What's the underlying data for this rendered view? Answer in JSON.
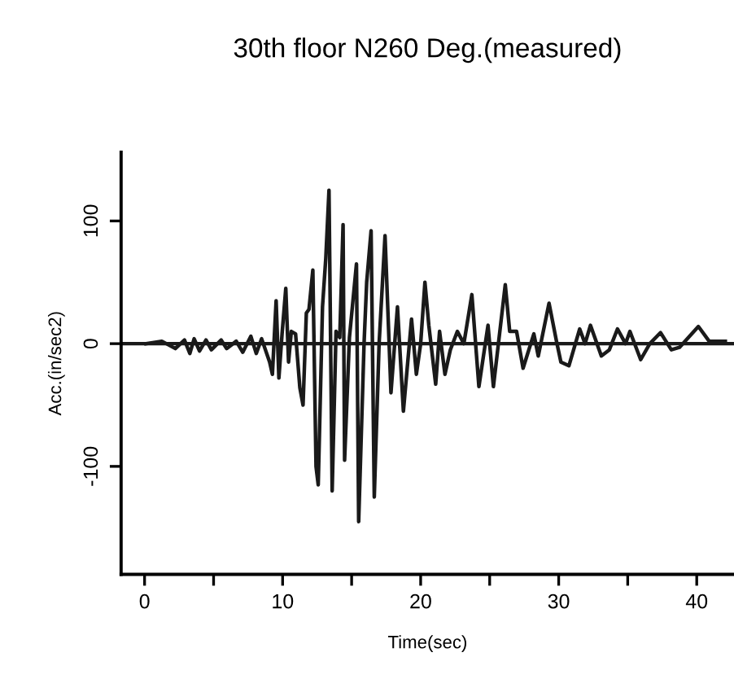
{
  "chart_data": {
    "type": "line",
    "title": "30th floor N260 Deg.(measured)",
    "xlabel": "Time(sec)",
    "ylabel": "Acc.(in/sec2)",
    "x": [
      0.1,
      1.25,
      2.23,
      2.89,
      3.28,
      3.59,
      3.98,
      4.45,
      4.84,
      5.55,
      5.94,
      6.64,
      7.11,
      7.7,
      8.09,
      8.48,
      9.06,
      9.26,
      9.53,
      9.73,
      9.96,
      10.23,
      10.43,
      10.63,
      10.94,
      11.25,
      11.48,
      11.72,
      11.91,
      12.19,
      12.42,
      12.58,
      12.89,
      13.13,
      13.36,
      13.59,
      13.87,
      14.14,
      14.38,
      14.49,
      14.84,
      15.35,
      15.51,
      15.9,
      16.09,
      16.41,
      16.64,
      16.99,
      17.42,
      17.85,
      18.32,
      18.75,
      19.34,
      19.69,
      20.0,
      20.31,
      20.59,
      21.09,
      21.37,
      21.76,
      22.15,
      22.66,
      23.13,
      23.71,
      24.22,
      24.88,
      25.27,
      26.13,
      26.45,
      26.95,
      27.42,
      28.2,
      28.52,
      29.3,
      29.84,
      30.16,
      30.74,
      31.52,
      31.91,
      32.3,
      33.09,
      33.67,
      34.26,
      34.84,
      35.16,
      35.94,
      36.6,
      37.38,
      38.16,
      38.75,
      40.12,
      40.9,
      42.07
    ],
    "series": [
      {
        "color": "#1a1a1a",
        "values": [
          0,
          2,
          -4,
          3,
          -8,
          4,
          -6,
          3,
          -5,
          3,
          -4,
          2,
          -7,
          6,
          -8,
          4,
          -15,
          -25,
          35,
          -28,
          8,
          45,
          -15,
          10,
          8,
          -36,
          -50,
          25,
          28,
          60,
          -100,
          -115,
          30,
          70,
          125,
          -120,
          10,
          5,
          97,
          -95,
          5,
          65,
          -145,
          0,
          50,
          92,
          -125,
          0,
          88,
          -40,
          30,
          -55,
          20,
          -25,
          0,
          50,
          15,
          -33,
          10,
          -25,
          -5,
          10,
          0,
          40,
          -35,
          15,
          -35,
          48,
          10,
          10,
          -20,
          8,
          -10,
          33,
          2,
          -15,
          -18,
          12,
          0,
          15,
          -10,
          -5,
          12,
          0,
          10,
          -13,
          0,
          9,
          -5,
          -3,
          14,
          2,
          2
        ]
      }
    ],
    "xlim": [
      -1.7,
      42.7
    ],
    "ylim": [
      -188,
      156
    ],
    "xticks": [
      0,
      {
        "value": 5,
        "label": null
      },
      10,
      {
        "value": 15,
        "label": null
      },
      20,
      {
        "value": 25,
        "label": null
      },
      30,
      {
        "value": 35,
        "label": null
      },
      40
    ],
    "yticks": [
      -100,
      0,
      100
    ],
    "ref_lines": [
      {
        "axis": "y",
        "value": 0,
        "color": "#1a1a1a"
      }
    ],
    "grid": false,
    "legend": false,
    "marker": "none",
    "line_style": "solid"
  }
}
